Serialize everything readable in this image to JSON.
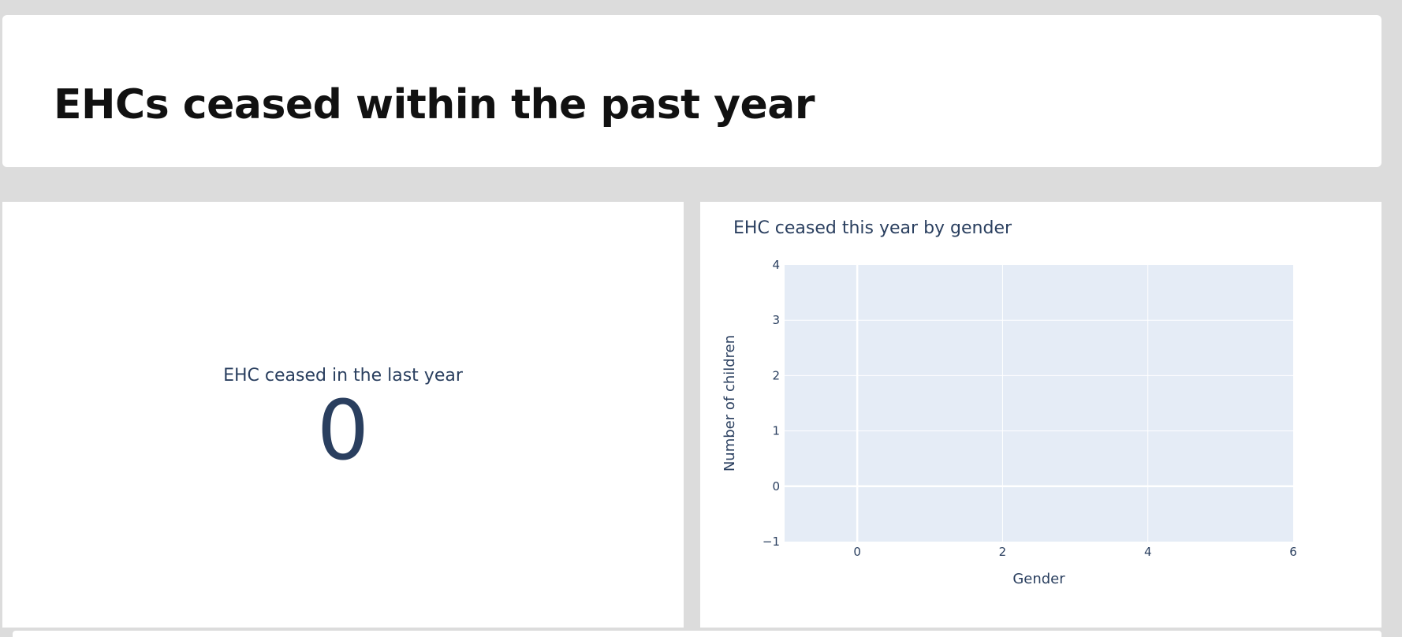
{
  "header": {
    "title": "EHCs ceased within the past year"
  },
  "kpi": {
    "label": "EHC ceased in the last year",
    "value": "0"
  },
  "colors": {
    "background": "#dcdcdc",
    "card": "#ffffff",
    "plot_bg": "#e5ecf6",
    "text": "#2a3f5f"
  },
  "chart_data": {
    "type": "bar",
    "title": "EHC ceased this year by gender",
    "xlabel": "Gender",
    "ylabel": "Number of children",
    "x": [],
    "values": [],
    "xlim": [
      -1,
      6
    ],
    "ylim": [
      -1,
      4
    ],
    "xticks": [
      "0",
      "2",
      "4",
      "6"
    ],
    "yticks": [
      "−1",
      "0",
      "1",
      "2",
      "3",
      "4"
    ],
    "grid": true
  }
}
